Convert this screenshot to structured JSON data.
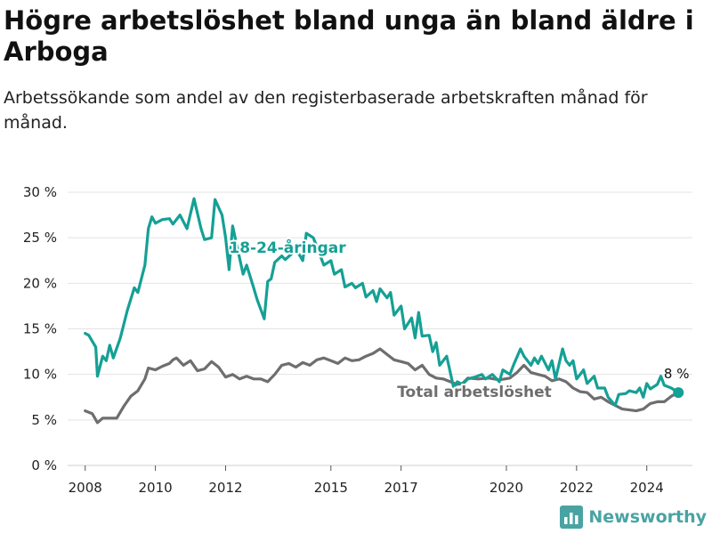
{
  "title": "Högre arbetslöshet bland unga än bland äldre i Arboga",
  "subtitle": "Arbetssökande som andel av den registerbaserade arbetskraften månad för månad.",
  "brand": {
    "name": "Newsworthy",
    "icon": "bar-chart-logo-icon",
    "color": "#4aa3a3"
  },
  "chart_data": {
    "type": "line",
    "title": "Högre arbetslöshet bland unga än bland äldre i Arboga",
    "subtitle": "Arbetssökande som andel av den registerbaserade arbetskraften månad för månad.",
    "xlabel": "",
    "ylabel": "",
    "xlim": [
      2007.5,
      2025.3
    ],
    "ylim": [
      0,
      30
    ],
    "x_ticks": [
      2008,
      2010,
      2012,
      2015,
      2017,
      2020,
      2022,
      2024
    ],
    "x_tick_labels": [
      "2008",
      "2010",
      "2012",
      "2015",
      "2017",
      "2020",
      "2022",
      "2024"
    ],
    "y_ticks": [
      0,
      5,
      10,
      15,
      20,
      25,
      30
    ],
    "y_tick_labels": [
      "0 %",
      "5 %",
      "10 %",
      "15 %",
      "20 %",
      "25 %",
      "30 %"
    ],
    "grid": "horizontal",
    "legend": "none (direct labels)",
    "end_label": "8 %",
    "series": [
      {
        "name": "18-24-åringar",
        "color": "#15a095",
        "points": [
          [
            2008.0,
            14.5
          ],
          [
            2008.1,
            14.3
          ],
          [
            2008.3,
            13.0
          ],
          [
            2008.35,
            9.8
          ],
          [
            2008.5,
            12.0
          ],
          [
            2008.6,
            11.5
          ],
          [
            2008.7,
            13.2
          ],
          [
            2008.8,
            11.8
          ],
          [
            2009.0,
            14.0
          ],
          [
            2009.2,
            17.0
          ],
          [
            2009.4,
            19.5
          ],
          [
            2009.5,
            19.0
          ],
          [
            2009.7,
            22.0
          ],
          [
            2009.8,
            26.0
          ],
          [
            2009.9,
            27.3
          ],
          [
            2010.0,
            26.6
          ],
          [
            2010.2,
            27.0
          ],
          [
            2010.4,
            27.1
          ],
          [
            2010.5,
            26.5
          ],
          [
            2010.7,
            27.5
          ],
          [
            2010.9,
            26.0
          ],
          [
            2011.1,
            29.3
          ],
          [
            2011.3,
            26.0
          ],
          [
            2011.4,
            24.8
          ],
          [
            2011.6,
            25.0
          ],
          [
            2011.7,
            29.2
          ],
          [
            2011.9,
            27.5
          ],
          [
            2012.0,
            25.0
          ],
          [
            2012.1,
            21.5
          ],
          [
            2012.2,
            26.3
          ],
          [
            2012.3,
            24.5
          ],
          [
            2012.5,
            21.0
          ],
          [
            2012.6,
            22.0
          ],
          [
            2012.8,
            19.5
          ],
          [
            2012.9,
            18.2
          ],
          [
            2013.1,
            16.1
          ],
          [
            2013.2,
            20.2
          ],
          [
            2013.3,
            20.5
          ],
          [
            2013.4,
            22.3
          ],
          [
            2013.6,
            23.0
          ],
          [
            2013.7,
            22.6
          ],
          [
            2013.9,
            23.3
          ],
          [
            2014.0,
            23.8
          ],
          [
            2014.2,
            22.5
          ],
          [
            2014.3,
            25.5
          ],
          [
            2014.5,
            25.0
          ],
          [
            2014.6,
            24.0
          ],
          [
            2014.8,
            22.0
          ],
          [
            2015.0,
            22.5
          ],
          [
            2015.1,
            21.0
          ],
          [
            2015.3,
            21.5
          ],
          [
            2015.4,
            19.6
          ],
          [
            2015.6,
            20.0
          ],
          [
            2015.7,
            19.5
          ],
          [
            2015.9,
            20.0
          ],
          [
            2016.0,
            18.5
          ],
          [
            2016.2,
            19.2
          ],
          [
            2016.3,
            18.0
          ],
          [
            2016.4,
            19.4
          ],
          [
            2016.6,
            18.4
          ],
          [
            2016.7,
            19.0
          ],
          [
            2016.8,
            16.5
          ],
          [
            2017.0,
            17.5
          ],
          [
            2017.1,
            15.0
          ],
          [
            2017.3,
            16.2
          ],
          [
            2017.4,
            14.0
          ],
          [
            2017.5,
            16.8
          ],
          [
            2017.6,
            14.2
          ],
          [
            2017.8,
            14.3
          ],
          [
            2017.9,
            12.5
          ],
          [
            2018.0,
            13.5
          ],
          [
            2018.1,
            11.0
          ],
          [
            2018.3,
            12.0
          ],
          [
            2018.5,
            8.5
          ],
          [
            2018.6,
            9.2
          ],
          [
            2018.75,
            8.9
          ],
          [
            2018.9,
            9.5
          ],
          [
            2019.1,
            9.7
          ],
          [
            2019.3,
            10.0
          ],
          [
            2019.4,
            9.5
          ],
          [
            2019.6,
            10.0
          ],
          [
            2019.8,
            9.2
          ],
          [
            2019.9,
            10.5
          ],
          [
            2020.1,
            10.0
          ],
          [
            2020.2,
            11.0
          ],
          [
            2020.4,
            12.8
          ],
          [
            2020.5,
            12.0
          ],
          [
            2020.7,
            11.0
          ],
          [
            2020.8,
            11.8
          ],
          [
            2020.9,
            11.2
          ],
          [
            2021.0,
            12.0
          ],
          [
            2021.2,
            10.5
          ],
          [
            2021.3,
            11.5
          ],
          [
            2021.4,
            9.5
          ],
          [
            2021.6,
            12.8
          ],
          [
            2021.7,
            11.5
          ],
          [
            2021.8,
            11.0
          ],
          [
            2021.9,
            11.5
          ],
          [
            2022.0,
            9.5
          ],
          [
            2022.2,
            10.5
          ],
          [
            2022.3,
            9.0
          ],
          [
            2022.5,
            9.8
          ],
          [
            2022.6,
            8.5
          ],
          [
            2022.8,
            8.5
          ],
          [
            2022.9,
            7.5
          ],
          [
            2023.1,
            6.6
          ],
          [
            2023.2,
            7.8
          ],
          [
            2023.4,
            7.9
          ],
          [
            2023.5,
            8.2
          ],
          [
            2023.7,
            8.0
          ],
          [
            2023.8,
            8.5
          ],
          [
            2023.9,
            7.5
          ],
          [
            2024.0,
            9.0
          ],
          [
            2024.1,
            8.4
          ],
          [
            2024.3,
            8.9
          ],
          [
            2024.4,
            9.8
          ],
          [
            2024.5,
            8.8
          ],
          [
            2024.7,
            8.5
          ],
          [
            2024.9,
            8.0
          ]
        ]
      },
      {
        "name": "Total arbetslöshet",
        "color": "#6e6e70",
        "points": [
          [
            2008.0,
            6.0
          ],
          [
            2008.2,
            5.7
          ],
          [
            2008.35,
            4.7
          ],
          [
            2008.5,
            5.2
          ],
          [
            2008.7,
            5.2
          ],
          [
            2008.9,
            5.2
          ],
          [
            2009.1,
            6.5
          ],
          [
            2009.3,
            7.6
          ],
          [
            2009.5,
            8.2
          ],
          [
            2009.7,
            9.5
          ],
          [
            2009.8,
            10.7
          ],
          [
            2010.0,
            10.5
          ],
          [
            2010.2,
            10.9
          ],
          [
            2010.4,
            11.2
          ],
          [
            2010.5,
            11.6
          ],
          [
            2010.6,
            11.8
          ],
          [
            2010.8,
            11.0
          ],
          [
            2011.0,
            11.5
          ],
          [
            2011.2,
            10.4
          ],
          [
            2011.4,
            10.6
          ],
          [
            2011.6,
            11.4
          ],
          [
            2011.8,
            10.8
          ],
          [
            2012.0,
            9.7
          ],
          [
            2012.2,
            10.0
          ],
          [
            2012.4,
            9.5
          ],
          [
            2012.6,
            9.8
          ],
          [
            2012.8,
            9.5
          ],
          [
            2013.0,
            9.5
          ],
          [
            2013.2,
            9.2
          ],
          [
            2013.4,
            10.0
          ],
          [
            2013.6,
            11.0
          ],
          [
            2013.8,
            11.2
          ],
          [
            2014.0,
            10.8
          ],
          [
            2014.2,
            11.3
          ],
          [
            2014.4,
            11.0
          ],
          [
            2014.6,
            11.6
          ],
          [
            2014.8,
            11.8
          ],
          [
            2015.0,
            11.5
          ],
          [
            2015.2,
            11.2
          ],
          [
            2015.4,
            11.8
          ],
          [
            2015.6,
            11.5
          ],
          [
            2015.8,
            11.6
          ],
          [
            2016.0,
            12.0
          ],
          [
            2016.2,
            12.3
          ],
          [
            2016.4,
            12.8
          ],
          [
            2016.6,
            12.2
          ],
          [
            2016.8,
            11.6
          ],
          [
            2017.0,
            11.4
          ],
          [
            2017.2,
            11.2
          ],
          [
            2017.4,
            10.5
          ],
          [
            2017.6,
            11.0
          ],
          [
            2017.8,
            10.0
          ],
          [
            2018.0,
            9.6
          ],
          [
            2018.2,
            9.5
          ],
          [
            2018.4,
            9.2
          ],
          [
            2018.6,
            8.9
          ],
          [
            2018.75,
            9.0
          ],
          [
            2018.9,
            9.6
          ],
          [
            2019.2,
            9.5
          ],
          [
            2019.5,
            9.6
          ],
          [
            2019.8,
            9.4
          ],
          [
            2020.1,
            9.6
          ],
          [
            2020.3,
            10.2
          ],
          [
            2020.5,
            11.0
          ],
          [
            2020.7,
            10.2
          ],
          [
            2020.9,
            10.0
          ],
          [
            2021.1,
            9.8
          ],
          [
            2021.3,
            9.3
          ],
          [
            2021.5,
            9.5
          ],
          [
            2021.7,
            9.2
          ],
          [
            2021.9,
            8.5
          ],
          [
            2022.1,
            8.1
          ],
          [
            2022.3,
            8.0
          ],
          [
            2022.5,
            7.3
          ],
          [
            2022.7,
            7.5
          ],
          [
            2022.9,
            7.0
          ],
          [
            2023.1,
            6.6
          ],
          [
            2023.3,
            6.2
          ],
          [
            2023.5,
            6.1
          ],
          [
            2023.7,
            6.0
          ],
          [
            2023.9,
            6.2
          ],
          [
            2024.1,
            6.8
          ],
          [
            2024.3,
            7.0
          ],
          [
            2024.5,
            7.0
          ],
          [
            2024.7,
            7.6
          ],
          [
            2024.9,
            8.0
          ]
        ]
      }
    ]
  }
}
